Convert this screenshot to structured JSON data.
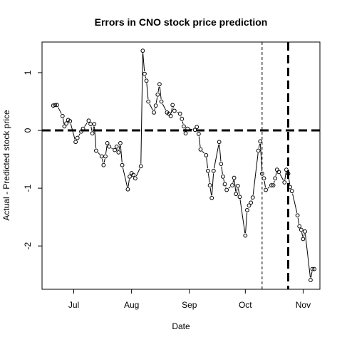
{
  "chart_data": {
    "type": "line",
    "title": "Errors in CNO stock price prediction",
    "xlabel": "Date",
    "ylabel": "Actual - Predicted stock price",
    "x_ticks": [
      {
        "label": "Jul",
        "date": "2012-07-01"
      },
      {
        "label": "Aug",
        "date": "2012-08-01"
      },
      {
        "label": "Sep",
        "date": "2012-09-01"
      },
      {
        "label": "Oct",
        "date": "2012-10-01"
      },
      {
        "label": "Nov",
        "date": "2012-11-01"
      }
    ],
    "y_ticks": [
      -2,
      -1,
      0,
      1
    ],
    "xlim": [
      "2012-06-14",
      "2012-11-10"
    ],
    "ylim": [
      -2.75,
      1.53
    ],
    "grid": false,
    "legend": "none",
    "reference_lines": [
      {
        "orientation": "horizontal",
        "value": 0,
        "style": "thick-dashed"
      },
      {
        "orientation": "vertical",
        "date": "2012-10-10",
        "style": "thin-dashed"
      },
      {
        "orientation": "vertical",
        "date": "2012-10-24",
        "style": "thick-dashed"
      }
    ],
    "series": [
      {
        "x": [
          "2012-06-20",
          "2012-06-21",
          "2012-06-22",
          "2012-06-25",
          "2012-06-26",
          "2012-06-27",
          "2012-06-28",
          "2012-06-29",
          "2012-07-02",
          "2012-07-03",
          "2012-07-05",
          "2012-07-06",
          "2012-07-09",
          "2012-07-10",
          "2012-07-11",
          "2012-07-12",
          "2012-07-13",
          "2012-07-16",
          "2012-07-17",
          "2012-07-18",
          "2012-07-19",
          "2012-07-20",
          "2012-07-23",
          "2012-07-24",
          "2012-07-25",
          "2012-07-26",
          "2012-07-27",
          "2012-07-30",
          "2012-07-31",
          "2012-08-01",
          "2012-08-02",
          "2012-08-03",
          "2012-08-06",
          "2012-08-07",
          "2012-08-08",
          "2012-08-09",
          "2012-08-10",
          "2012-08-13",
          "2012-08-14",
          "2012-08-15",
          "2012-08-16",
          "2012-08-17",
          "2012-08-20",
          "2012-08-21",
          "2012-08-22",
          "2012-08-23",
          "2012-08-24",
          "2012-08-27",
          "2012-08-28",
          "2012-08-29",
          "2012-08-30",
          "2012-08-31",
          "2012-09-04",
          "2012-09-05",
          "2012-09-06",
          "2012-09-07",
          "2012-09-10",
          "2012-09-11",
          "2012-09-12",
          "2012-09-13",
          "2012-09-14",
          "2012-09-17",
          "2012-09-18",
          "2012-09-19",
          "2012-09-20",
          "2012-09-21",
          "2012-09-24",
          "2012-09-25",
          "2012-09-26",
          "2012-09-27",
          "2012-09-28",
          "2012-10-01",
          "2012-10-02",
          "2012-10-03",
          "2012-10-04",
          "2012-10-05",
          "2012-10-08",
          "2012-10-09",
          "2012-10-10",
          "2012-10-11",
          "2012-10-12",
          "2012-10-15",
          "2012-10-16",
          "2012-10-17",
          "2012-10-18",
          "2012-10-19",
          "2012-10-22",
          "2012-10-23",
          "2012-10-24",
          "2012-10-25",
          "2012-10-26",
          "2012-10-29",
          "2012-10-30",
          "2012-10-31",
          "2012-11-01",
          "2012-11-02",
          "2012-11-05",
          "2012-11-06",
          "2012-11-07"
        ],
        "y": [
          0.43,
          0.44,
          0.44,
          0.25,
          0.07,
          0.12,
          0.18,
          0.16,
          -0.2,
          -0.13,
          -0.02,
          0.03,
          0.17,
          0.11,
          -0.05,
          0.11,
          -0.35,
          -0.45,
          -0.6,
          -0.45,
          -0.22,
          -0.28,
          -0.34,
          -0.28,
          -0.38,
          -0.22,
          -0.6,
          -1.02,
          -0.8,
          -0.74,
          -0.77,
          -0.83,
          -0.62,
          1.38,
          0.98,
          0.86,
          0.5,
          0.31,
          0.43,
          0.62,
          0.8,
          0.5,
          0.31,
          0.29,
          0.25,
          0.44,
          0.34,
          0.29,
          0.2,
          0.07,
          -0.05,
          0.03,
          0.01,
          0.06,
          -0.06,
          -0.33,
          -0.43,
          -0.7,
          -0.95,
          -1.17,
          -0.7,
          -0.2,
          -0.58,
          -0.8,
          -0.93,
          -1.03,
          -0.95,
          -0.82,
          -1.1,
          -0.96,
          -1.15,
          -1.82,
          -1.38,
          -1.3,
          -1.25,
          -1.16,
          -0.35,
          -0.19,
          -0.75,
          -0.83,
          -1.03,
          -0.95,
          -0.95,
          -0.83,
          -0.68,
          -0.72,
          -0.9,
          -0.68,
          -0.75,
          -0.98,
          -1.05,
          -1.47,
          -1.66,
          -1.72,
          -1.88,
          -1.75,
          -2.59,
          -2.4,
          -2.4
        ]
      }
    ]
  }
}
